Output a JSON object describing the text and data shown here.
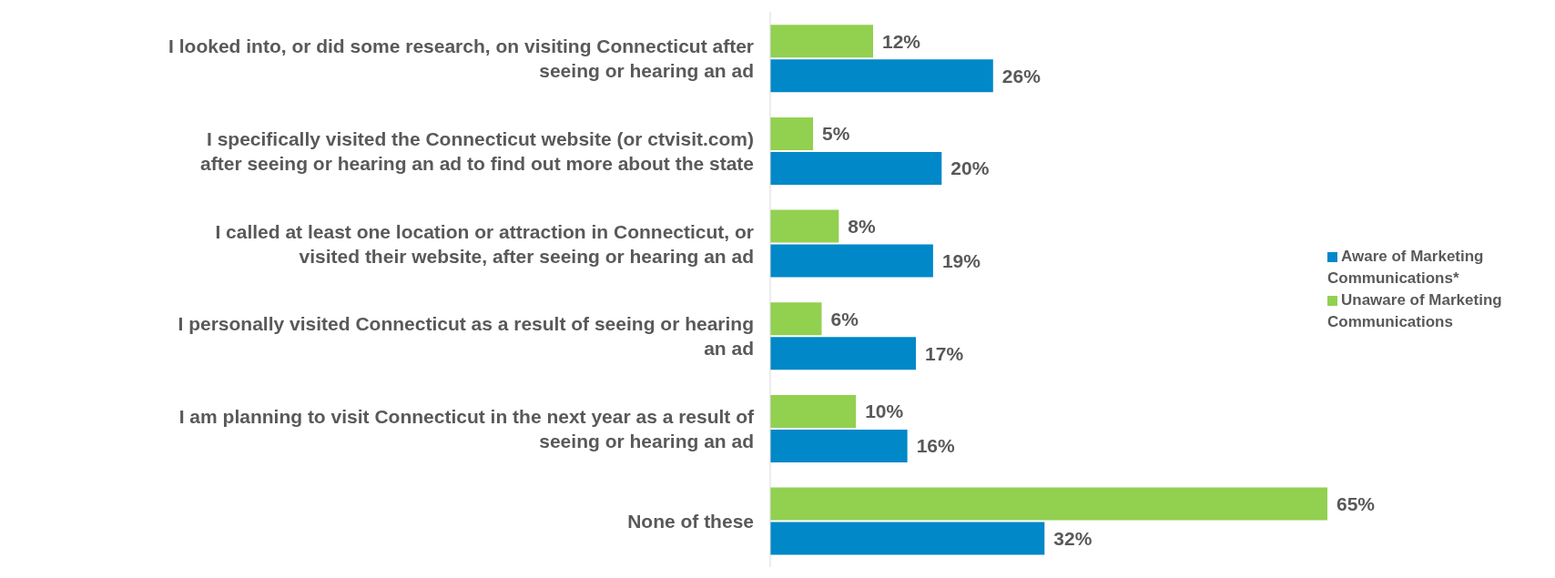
{
  "chart_data": {
    "type": "bar",
    "orientation": "horizontal",
    "categories": [
      "I looked into, or did some research, on visiting Connecticut after seeing or hearing an ad",
      "I specifically visited the Connecticut website (or ctvisit.com) after seeing or hearing an ad to find out more about the state",
      "I called at least one location or attraction in Connecticut, or visited their website, after seeing or hearing an ad",
      "I personally visited Connecticut as a result of seeing or hearing an ad",
      "I am planning to visit Connecticut in the next year as a result of seeing or hearing an ad",
      "None of these"
    ],
    "series": [
      {
        "name": "Unaware of Marketing Communications",
        "color": "#92d050",
        "values": [
          12,
          5,
          8,
          6,
          10,
          65
        ],
        "value_labels": [
          "12%",
          "5%",
          "8%",
          "6%",
          "10%",
          "65%"
        ]
      },
      {
        "name": "Aware of Marketing Communications*",
        "color": "#0088c8",
        "values": [
          26,
          20,
          19,
          17,
          16,
          32
        ],
        "value_labels": [
          "26%",
          "20%",
          "19%",
          "17%",
          "16%",
          "32%"
        ]
      }
    ],
    "legend": "right"
  }
}
